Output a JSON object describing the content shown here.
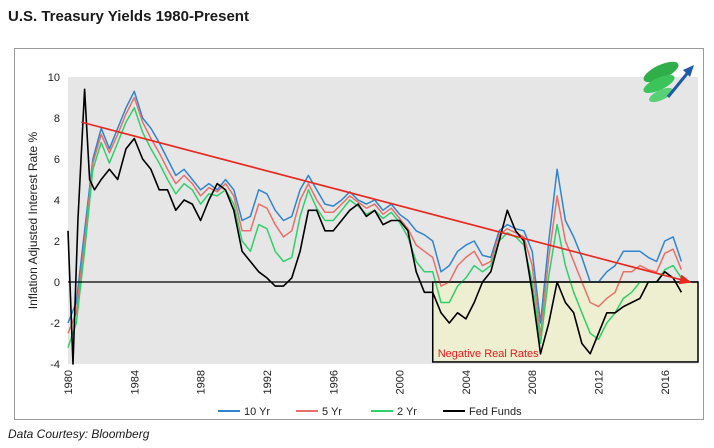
{
  "page": {
    "title": "U.S. Treasury Yields 1980-Present",
    "credit": "Data Courtesy: Bloomberg"
  },
  "chart_data": {
    "type": "line",
    "title": "U.S. Treasury Yields 1980-Present",
    "xlabel": "",
    "ylabel": "Inflation Adjusted Interest Rate %",
    "xlim": [
      1980,
      2018
    ],
    "ylim": [
      -4,
      10
    ],
    "x_ticks": [
      "1980",
      "1984",
      "1988",
      "1992",
      "1996",
      "2000",
      "2004",
      "2008",
      "2012",
      "2016"
    ],
    "y_ticks": [
      -4,
      -2,
      0,
      2,
      4,
      6,
      8,
      10
    ],
    "grid": false,
    "legend_position": "bottom",
    "annotation": "Negative Real Rates",
    "trendline": {
      "x": [
        1980.8,
        2017.5
      ],
      "y": [
        7.8,
        0.0
      ],
      "color": "#e8281e"
    },
    "shaded_region": {
      "x": [
        2002.0,
        2018.0
      ],
      "y": [
        -3.9,
        0.0
      ],
      "color": "#eeeed0"
    },
    "series": [
      {
        "name": "10 Yr",
        "color": "#2f85d0",
        "x": [
          1980.0,
          1980.5,
          1981.0,
          1981.5,
          1982.0,
          1982.5,
          1983.0,
          1983.5,
          1984.0,
          1984.5,
          1985.0,
          1985.5,
          1986.0,
          1986.5,
          1987.0,
          1987.5,
          1988.0,
          1988.5,
          1989.0,
          1989.5,
          1990.0,
          1990.5,
          1991.0,
          1991.5,
          1992.0,
          1992.5,
          1993.0,
          1993.5,
          1994.0,
          1994.5,
          1995.0,
          1995.5,
          1996.0,
          1996.5,
          1997.0,
          1997.5,
          1998.0,
          1998.5,
          1999.0,
          1999.5,
          2000.0,
          2000.5,
          2001.0,
          2001.5,
          2002.0,
          2002.5,
          2003.0,
          2003.5,
          2004.0,
          2004.5,
          2005.0,
          2005.5,
          2006.0,
          2006.5,
          2007.0,
          2007.5,
          2008.0,
          2008.5,
          2009.0,
          2009.5,
          2010.0,
          2010.5,
          2011.0,
          2011.5,
          2012.0,
          2012.5,
          2013.0,
          2013.5,
          2014.0,
          2014.5,
          2015.0,
          2015.5,
          2016.0,
          2016.5,
          2017.0
        ],
        "y": [
          -2.0,
          -1.0,
          2.5,
          6.0,
          7.5,
          6.5,
          7.5,
          8.5,
          9.3,
          8.0,
          7.5,
          6.8,
          6.0,
          5.2,
          5.5,
          5.0,
          4.5,
          4.8,
          4.5,
          5.0,
          4.5,
          3.0,
          3.2,
          4.5,
          4.3,
          3.5,
          3.0,
          3.2,
          4.5,
          5.2,
          4.5,
          3.8,
          3.7,
          4.0,
          4.4,
          4.0,
          3.8,
          4.0,
          3.5,
          3.8,
          3.3,
          3.0,
          2.5,
          2.3,
          2.0,
          0.5,
          0.8,
          1.5,
          1.8,
          2.0,
          1.3,
          1.2,
          2.5,
          2.8,
          2.6,
          2.5,
          1.5,
          -2.0,
          2.0,
          5.5,
          3.0,
          2.2,
          1.2,
          0.0,
          0.0,
          0.5,
          0.8,
          1.5,
          1.5,
          1.5,
          1.2,
          1.0,
          2.0,
          2.2,
          1.0
        ]
      },
      {
        "name": "5 Yr",
        "color": "#e8706a",
        "x": [
          1980.0,
          1980.5,
          1981.0,
          1981.5,
          1982.0,
          1982.5,
          1983.0,
          1983.5,
          1984.0,
          1984.5,
          1985.0,
          1985.5,
          1986.0,
          1986.5,
          1987.0,
          1987.5,
          1988.0,
          1988.5,
          1989.0,
          1989.5,
          1990.0,
          1990.5,
          1991.0,
          1991.5,
          1992.0,
          1992.5,
          1993.0,
          1993.5,
          1994.0,
          1994.5,
          1995.0,
          1995.5,
          1996.0,
          1996.5,
          1997.0,
          1997.5,
          1998.0,
          1998.5,
          1999.0,
          1999.5,
          2000.0,
          2000.5,
          2001.0,
          2001.5,
          2002.0,
          2002.5,
          2003.0,
          2003.5,
          2004.0,
          2004.5,
          2005.0,
          2005.5,
          2006.0,
          2006.5,
          2007.0,
          2007.5,
          2008.0,
          2008.5,
          2009.0,
          2009.5,
          2010.0,
          2010.5,
          2011.0,
          2011.5,
          2012.0,
          2012.5,
          2013.0,
          2013.5,
          2014.0,
          2014.5,
          2015.0,
          2015.5,
          2016.0,
          2016.5,
          2017.0
        ],
        "y": [
          -2.5,
          -1.5,
          2.0,
          5.8,
          7.2,
          6.3,
          7.2,
          8.2,
          9.0,
          7.8,
          7.0,
          6.3,
          5.5,
          4.8,
          5.2,
          4.8,
          4.2,
          4.6,
          4.4,
          4.8,
          4.2,
          2.5,
          2.5,
          3.8,
          3.6,
          2.8,
          2.2,
          2.5,
          4.0,
          4.8,
          4.0,
          3.4,
          3.4,
          3.8,
          4.2,
          3.9,
          3.6,
          3.8,
          3.3,
          3.6,
          3.1,
          2.6,
          1.8,
          1.5,
          1.2,
          -0.2,
          0.0,
          0.8,
          1.2,
          1.5,
          0.8,
          1.0,
          2.3,
          2.6,
          2.4,
          2.2,
          0.8,
          -2.6,
          1.2,
          4.2,
          2.0,
          1.0,
          0.0,
          -1.0,
          -1.2,
          -0.8,
          -0.5,
          0.5,
          0.5,
          0.8,
          0.6,
          0.5,
          1.4,
          1.6,
          0.6
        ]
      },
      {
        "name": "2 Yr",
        "color": "#2fd06a",
        "x": [
          1980.0,
          1980.5,
          1981.0,
          1981.5,
          1982.0,
          1982.5,
          1983.0,
          1983.5,
          1984.0,
          1984.5,
          1985.0,
          1985.5,
          1986.0,
          1986.5,
          1987.0,
          1987.5,
          1988.0,
          1988.5,
          1989.0,
          1989.5,
          1990.0,
          1990.5,
          1991.0,
          1991.5,
          1992.0,
          1992.5,
          1993.0,
          1993.5,
          1994.0,
          1994.5,
          1995.0,
          1995.5,
          1996.0,
          1996.5,
          1997.0,
          1997.5,
          1998.0,
          1998.5,
          1999.0,
          1999.5,
          2000.0,
          2000.5,
          2001.0,
          2001.5,
          2002.0,
          2002.5,
          2003.0,
          2003.5,
          2004.0,
          2004.5,
          2005.0,
          2005.5,
          2006.0,
          2006.5,
          2007.0,
          2007.5,
          2008.0,
          2008.5,
          2009.0,
          2009.5,
          2010.0,
          2010.5,
          2011.0,
          2011.5,
          2012.0,
          2012.5,
          2013.0,
          2013.5,
          2014.0,
          2014.5,
          2015.0,
          2015.5,
          2016.0,
          2016.5,
          2017.0
        ],
        "y": [
          -3.2,
          -2.0,
          1.5,
          5.5,
          6.8,
          5.8,
          6.8,
          7.8,
          8.5,
          7.3,
          6.5,
          5.8,
          5.0,
          4.3,
          4.8,
          4.5,
          3.8,
          4.3,
          4.2,
          4.5,
          3.8,
          2.0,
          1.5,
          2.8,
          2.6,
          1.5,
          1.0,
          1.2,
          3.2,
          4.5,
          3.6,
          3.0,
          3.0,
          3.5,
          4.0,
          3.7,
          3.3,
          3.5,
          3.1,
          3.4,
          2.9,
          2.2,
          1.0,
          0.5,
          0.5,
          -1.0,
          -1.0,
          -0.2,
          0.2,
          0.8,
          0.5,
          0.8,
          2.0,
          2.4,
          2.2,
          1.8,
          0.0,
          -3.0,
          0.3,
          2.8,
          0.8,
          -0.5,
          -1.5,
          -2.5,
          -2.8,
          -2.0,
          -1.5,
          -0.8,
          -0.5,
          0.0,
          0.0,
          0.0,
          0.6,
          0.8,
          0.2
        ]
      },
      {
        "name": "Fed Funds",
        "color": "#000000",
        "x": [
          1980.0,
          1980.3,
          1980.6,
          1981.0,
          1981.3,
          1981.6,
          1982.0,
          1982.5,
          1983.0,
          1983.5,
          1984.0,
          1984.5,
          1985.0,
          1985.5,
          1986.0,
          1986.5,
          1987.0,
          1987.5,
          1988.0,
          1988.5,
          1989.0,
          1989.5,
          1990.0,
          1990.5,
          1991.0,
          1991.5,
          1992.0,
          1992.5,
          1993.0,
          1993.5,
          1994.0,
          1994.5,
          1995.0,
          1995.5,
          1996.0,
          1996.5,
          1997.0,
          1997.5,
          1998.0,
          1998.5,
          1999.0,
          1999.5,
          2000.0,
          2000.5,
          2001.0,
          2001.5,
          2002.0,
          2002.5,
          2003.0,
          2003.5,
          2004.0,
          2004.5,
          2005.0,
          2005.5,
          2006.0,
          2006.5,
          2007.0,
          2007.5,
          2008.0,
          2008.5,
          2009.0,
          2009.5,
          2010.0,
          2010.5,
          2011.0,
          2011.5,
          2012.0,
          2012.5,
          2013.0,
          2013.5,
          2014.0,
          2014.5,
          2015.0,
          2015.5,
          2016.0,
          2016.5,
          2017.0
        ],
        "y": [
          2.5,
          -4.0,
          3.0,
          9.4,
          5.0,
          4.5,
          5.0,
          5.5,
          5.0,
          6.5,
          7.0,
          6.0,
          5.5,
          4.5,
          4.5,
          3.5,
          4.0,
          3.8,
          3.0,
          4.0,
          4.8,
          4.5,
          3.5,
          1.5,
          1.0,
          0.5,
          0.2,
          -0.2,
          -0.2,
          0.2,
          1.5,
          3.5,
          3.5,
          2.5,
          2.5,
          3.0,
          3.5,
          3.8,
          3.2,
          3.5,
          2.8,
          3.0,
          3.0,
          2.5,
          0.5,
          -0.5,
          -0.5,
          -1.5,
          -2.0,
          -1.5,
          -1.8,
          -1.0,
          0.0,
          0.5,
          2.0,
          3.5,
          2.5,
          2.0,
          -0.5,
          -3.5,
          -2.0,
          0.0,
          -1.0,
          -1.5,
          -3.0,
          -3.5,
          -2.5,
          -1.5,
          -1.5,
          -1.2,
          -1.0,
          -0.8,
          0.0,
          0.0,
          0.5,
          0.2,
          -0.5
        ]
      }
    ]
  }
}
